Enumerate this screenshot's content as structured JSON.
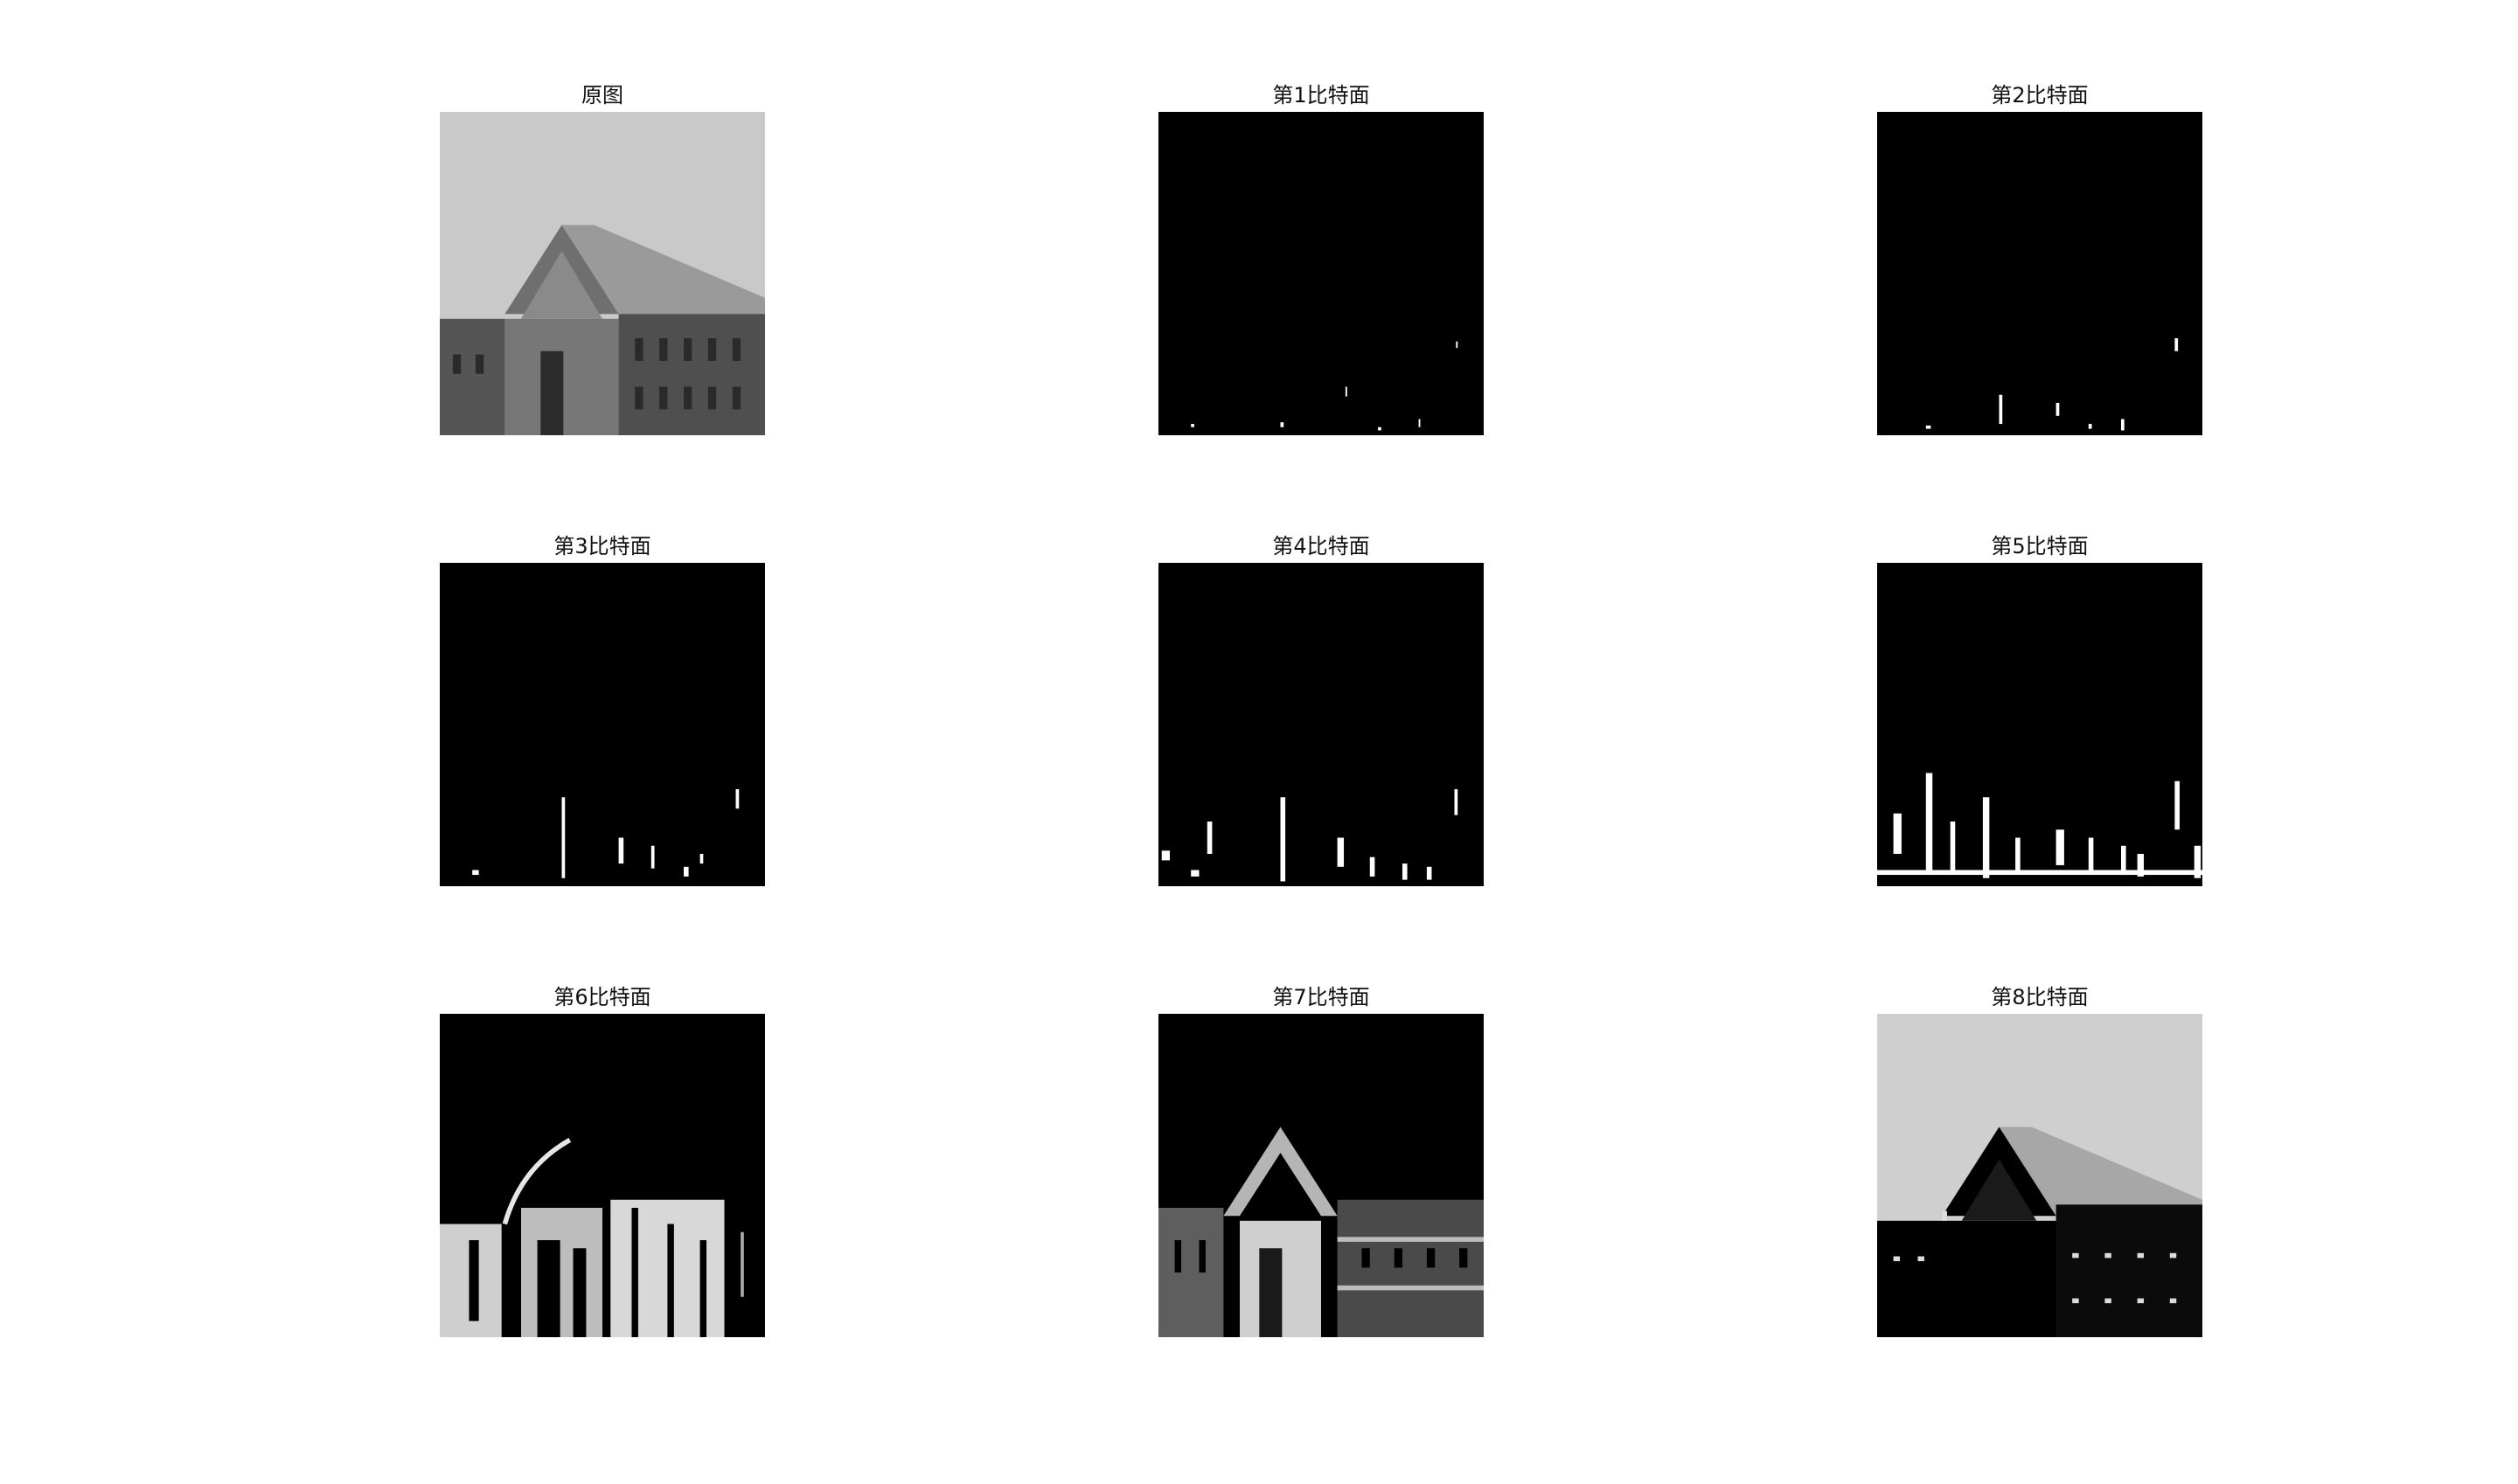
{
  "figure": {
    "background": "#ffffff",
    "panels": [
      {
        "title": "原图",
        "kind": "original"
      },
      {
        "title": "第1比特面",
        "kind": "bitplane",
        "bit": 1
      },
      {
        "title": "第2比特面",
        "kind": "bitplane",
        "bit": 2
      },
      {
        "title": "第3比特面",
        "kind": "bitplane",
        "bit": 3
      },
      {
        "title": "第4比特面",
        "kind": "bitplane",
        "bit": 4
      },
      {
        "title": "第5比特面",
        "kind": "bitplane",
        "bit": 5
      },
      {
        "title": "第6比特面",
        "kind": "bitplane",
        "bit": 6
      },
      {
        "title": "第7比特面",
        "kind": "bitplane",
        "bit": 7
      },
      {
        "title": "第8比特面",
        "kind": "bitplane",
        "bit": 8
      }
    ]
  }
}
